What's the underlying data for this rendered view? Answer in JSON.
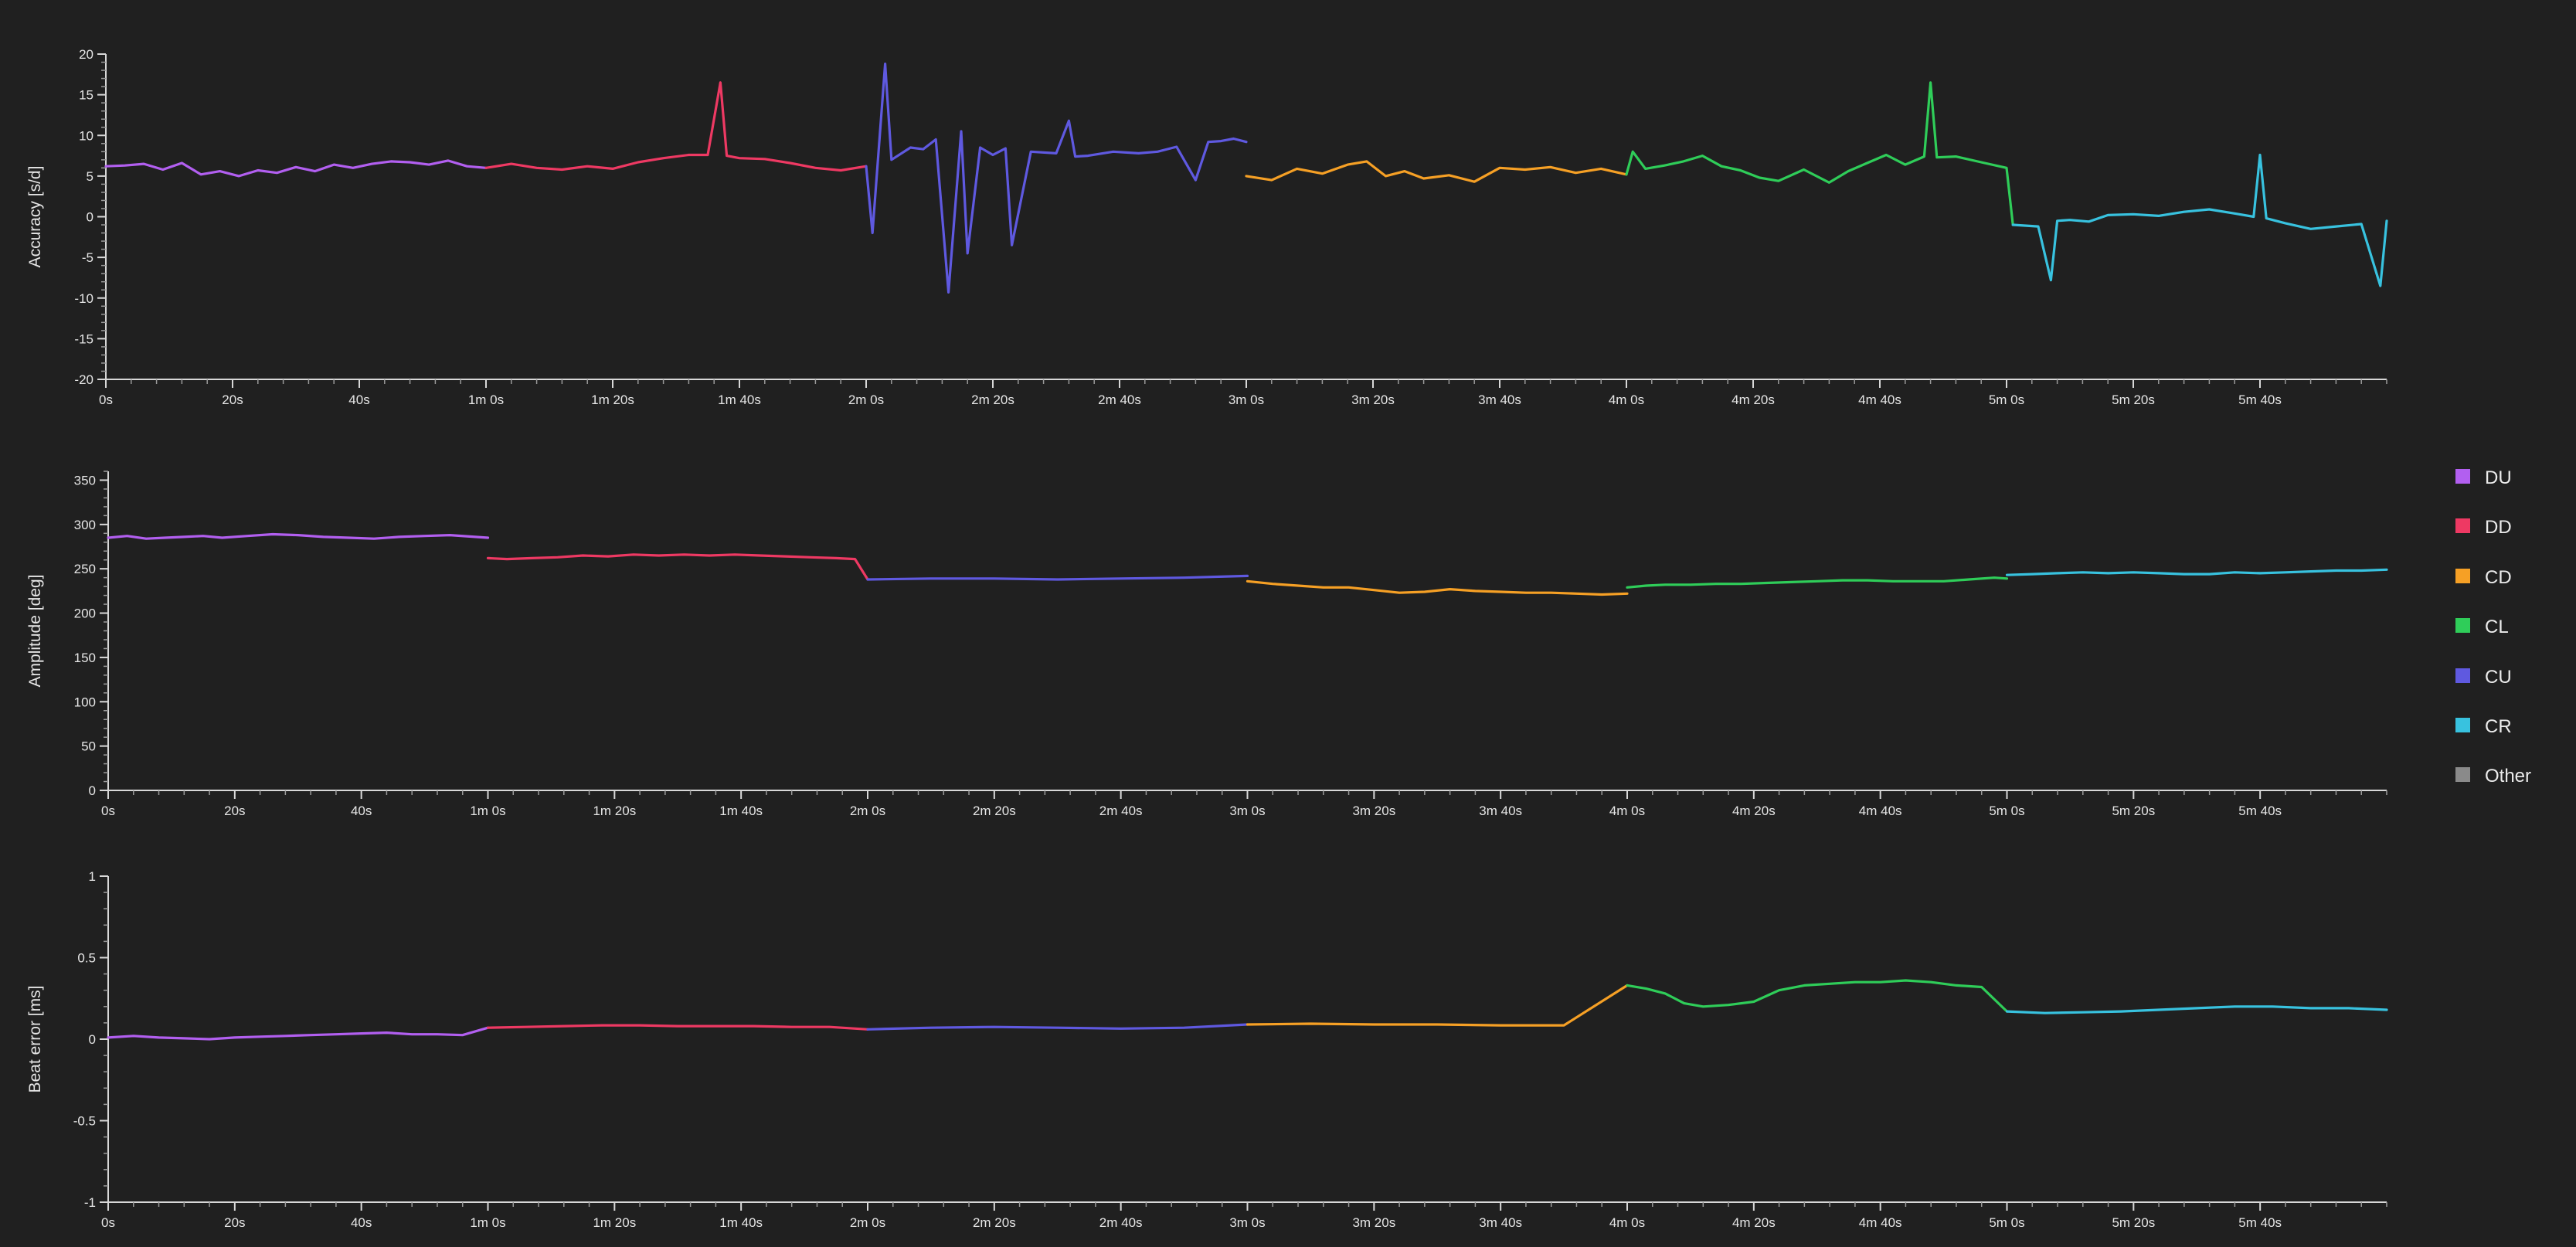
{
  "chart_data": [
    {
      "type": "line",
      "ylabel": "Accuracy [s/d]",
      "ylim": [
        -20,
        20
      ],
      "yticks": [
        -20,
        -15,
        -10,
        -5,
        0,
        5,
        10,
        15,
        20
      ],
      "xlim": [
        0,
        360
      ],
      "xticks": [
        0,
        20,
        40,
        60,
        80,
        100,
        120,
        140,
        160,
        180,
        200,
        220,
        240,
        260,
        280,
        300,
        320,
        340
      ],
      "xtick_labels": [
        "0s",
        "20s",
        "40s",
        "1m 0s",
        "1m 20s",
        "1m 40s",
        "2m 0s",
        "2m 20s",
        "2m 40s",
        "3m 0s",
        "3m 20s",
        "3m 40s",
        "4m 0s",
        "4m 20s",
        "4m 40s",
        "5m 0s",
        "5m 20s",
        "5m 40s"
      ],
      "series": [
        {
          "name": "DU",
          "x": [
            0,
            3,
            6,
            9,
            12,
            15,
            18,
            21,
            24,
            27,
            30,
            33,
            36,
            39,
            42,
            45,
            48,
            51,
            54,
            57,
            60
          ],
          "y": [
            6.2,
            6.3,
            6.5,
            5.8,
            6.6,
            5.2,
            5.6,
            5.0,
            5.7,
            5.4,
            6.1,
            5.6,
            6.4,
            6.0,
            6.5,
            6.8,
            6.7,
            6.4,
            6.9,
            6.2,
            6.0
          ]
        },
        {
          "name": "DD",
          "x": [
            60,
            64,
            68,
            72,
            76,
            80,
            84,
            88,
            92,
            95,
            97,
            98,
            100,
            104,
            108,
            112,
            116,
            120
          ],
          "y": [
            6.0,
            6.5,
            6.0,
            5.8,
            6.2,
            5.9,
            6.7,
            7.2,
            7.6,
            7.6,
            16.5,
            7.5,
            7.2,
            7.1,
            6.6,
            6.0,
            5.7,
            6.2
          ]
        },
        {
          "name": "CU",
          "x": [
            120,
            121,
            123,
            124,
            127,
            129,
            131,
            133,
            135,
            136,
            138,
            140,
            142,
            143,
            146,
            150,
            152,
            153,
            155,
            159,
            163,
            166,
            169,
            172,
            174,
            176,
            178,
            180
          ],
          "y": [
            6.2,
            -2.0,
            18.8,
            7.0,
            8.5,
            8.3,
            9.5,
            -9.3,
            10.5,
            -4.5,
            8.5,
            7.6,
            8.4,
            -3.5,
            8.0,
            7.8,
            11.8,
            7.4,
            7.5,
            8.0,
            7.8,
            8.0,
            8.6,
            4.5,
            9.2,
            9.3,
            9.6,
            9.2
          ]
        },
        {
          "name": "CD",
          "x": [
            180,
            184,
            188,
            192,
            196,
            199,
            202,
            205,
            208,
            212,
            216,
            220,
            224,
            228,
            232,
            236,
            240
          ],
          "y": [
            5.0,
            4.5,
            5.9,
            5.3,
            6.4,
            6.8,
            5.0,
            5.6,
            4.7,
            5.1,
            4.3,
            6.0,
            5.8,
            6.1,
            5.4,
            5.9,
            5.2
          ]
        },
        {
          "name": "CL",
          "x": [
            240,
            241,
            243,
            246,
            249,
            252,
            255,
            258,
            261,
            264,
            268,
            272,
            275,
            278,
            281,
            284,
            287,
            288,
            289,
            292,
            296,
            300,
            301
          ],
          "y": [
            5.2,
            8.0,
            5.9,
            6.3,
            6.8,
            7.5,
            6.2,
            5.7,
            4.8,
            4.4,
            5.8,
            4.2,
            5.6,
            6.6,
            7.6,
            6.4,
            7.4,
            16.5,
            7.3,
            7.4,
            6.7,
            6.0,
            -1.0
          ]
        },
        {
          "name": "CR",
          "x": [
            301,
            305,
            307,
            308,
            310,
            313,
            316,
            320,
            324,
            328,
            332,
            336,
            339,
            340,
            341,
            344,
            348,
            352,
            356,
            359,
            360
          ],
          "y": [
            -1.0,
            -1.2,
            -7.8,
            -0.5,
            -0.4,
            -0.6,
            0.2,
            0.3,
            0.1,
            0.6,
            0.9,
            0.4,
            0.0,
            7.6,
            -0.2,
            -0.8,
            -1.5,
            -1.2,
            -0.9,
            -8.5,
            -0.5
          ]
        }
      ]
    },
    {
      "type": "line",
      "ylabel": "Amplitude [deg]",
      "ylim": [
        0,
        360
      ],
      "yticks": [
        0,
        50,
        100,
        150,
        200,
        250,
        300,
        350
      ],
      "xlim": [
        0,
        360
      ],
      "xticks": [
        0,
        20,
        40,
        60,
        80,
        100,
        120,
        140,
        160,
        180,
        200,
        220,
        240,
        260,
        280,
        300,
        320,
        340
      ],
      "xtick_labels": [
        "0s",
        "20s",
        "40s",
        "1m 0s",
        "1m 20s",
        "1m 40s",
        "2m 0s",
        "2m 20s",
        "2m 40s",
        "3m 0s",
        "3m 20s",
        "3m 40s",
        "4m 0s",
        "4m 20s",
        "4m 40s",
        "5m 0s",
        "5m 20s",
        "5m 40s"
      ],
      "series": [
        {
          "name": "DU",
          "x": [
            0,
            3,
            6,
            9,
            12,
            15,
            18,
            22,
            26,
            30,
            34,
            38,
            42,
            46,
            50,
            54,
            58,
            60
          ],
          "y": [
            285,
            287,
            284,
            285,
            286,
            287,
            285,
            287,
            289,
            288,
            286,
            285,
            284,
            286,
            287,
            288,
            286,
            285
          ]
        },
        {
          "name": "DD",
          "x": [
            60,
            63,
            67,
            71,
            75,
            79,
            83,
            87,
            91,
            95,
            99,
            103,
            107,
            111,
            115,
            118,
            120
          ],
          "y": [
            262,
            261,
            262,
            263,
            265,
            264,
            266,
            265,
            266,
            265,
            266,
            265,
            264,
            263,
            262,
            261,
            238
          ]
        },
        {
          "name": "CU",
          "x": [
            120,
            130,
            140,
            150,
            160,
            170,
            180
          ],
          "y": [
            238,
            239,
            239,
            238,
            239,
            240,
            242
          ]
        },
        {
          "name": "CD",
          "x": [
            180,
            184,
            188,
            192,
            196,
            200,
            204,
            208,
            212,
            216,
            220,
            224,
            228,
            232,
            236,
            240
          ],
          "y": [
            236,
            233,
            231,
            229,
            229,
            226,
            223,
            224,
            227,
            225,
            224,
            223,
            223,
            222,
            221,
            222
          ]
        },
        {
          "name": "CL",
          "x": [
            240,
            243,
            246,
            250,
            254,
            258,
            262,
            266,
            270,
            274,
            278,
            282,
            286,
            290,
            294,
            298,
            300
          ],
          "y": [
            229,
            231,
            232,
            232,
            233,
            233,
            234,
            235,
            236,
            237,
            237,
            236,
            236,
            236,
            238,
            240,
            239
          ]
        },
        {
          "name": "CR",
          "x": [
            300,
            304,
            308,
            312,
            316,
            320,
            324,
            328,
            332,
            336,
            340,
            344,
            348,
            352,
            356,
            360
          ],
          "y": [
            243,
            244,
            245,
            246,
            245,
            246,
            245,
            244,
            244,
            246,
            245,
            246,
            247,
            248,
            248,
            249
          ]
        }
      ]
    },
    {
      "type": "line",
      "ylabel": "Beat error [ms]",
      "ylim": [
        -1,
        1
      ],
      "yticks": [
        -1,
        -0.5,
        0,
        0.5,
        1
      ],
      "ytick_labels": [
        "-1",
        "-0.5",
        "0",
        "0.5",
        "1"
      ],
      "xlim": [
        0,
        360
      ],
      "xticks": [
        0,
        20,
        40,
        60,
        80,
        100,
        120,
        140,
        160,
        180,
        200,
        220,
        240,
        260,
        280,
        300,
        320,
        340
      ],
      "xtick_labels": [
        "0s",
        "20s",
        "40s",
        "1m 0s",
        "1m 20s",
        "1m 40s",
        "2m 0s",
        "2m 20s",
        "2m 40s",
        "3m 0s",
        "3m 20s",
        "3m 40s",
        "4m 0s",
        "4m 20s",
        "4m 40s",
        "5m 0s",
        "5m 20s",
        "5m 40s"
      ],
      "series": [
        {
          "name": "DU",
          "x": [
            0,
            4,
            8,
            12,
            16,
            20,
            24,
            28,
            32,
            36,
            40,
            44,
            48,
            52,
            56,
            60
          ],
          "y": [
            0.01,
            0.02,
            0.01,
            0.005,
            0.0,
            0.01,
            0.015,
            0.02,
            0.025,
            0.03,
            0.035,
            0.04,
            0.03,
            0.03,
            0.025,
            0.07
          ]
        },
        {
          "name": "DD",
          "x": [
            60,
            66,
            72,
            78,
            84,
            90,
            96,
            102,
            108,
            114,
            120
          ],
          "y": [
            0.07,
            0.075,
            0.08,
            0.085,
            0.085,
            0.08,
            0.08,
            0.08,
            0.075,
            0.075,
            0.06
          ]
        },
        {
          "name": "CU",
          "x": [
            120,
            130,
            140,
            150,
            160,
            170,
            180
          ],
          "y": [
            0.06,
            0.07,
            0.075,
            0.07,
            0.065,
            0.07,
            0.09
          ]
        },
        {
          "name": "CD",
          "x": [
            180,
            190,
            200,
            210,
            220,
            230,
            240
          ],
          "y": [
            0.09,
            0.095,
            0.09,
            0.09,
            0.085,
            0.085,
            0.33
          ]
        },
        {
          "name": "CL",
          "x": [
            240,
            243,
            246,
            249,
            252,
            256,
            260,
            264,
            268,
            272,
            276,
            280,
            284,
            288,
            292,
            296,
            300
          ],
          "y": [
            0.33,
            0.31,
            0.28,
            0.22,
            0.2,
            0.21,
            0.23,
            0.3,
            0.33,
            0.34,
            0.35,
            0.35,
            0.36,
            0.35,
            0.33,
            0.32,
            0.17
          ]
        },
        {
          "name": "CR",
          "x": [
            300,
            306,
            312,
            318,
            324,
            330,
            336,
            342,
            348,
            354,
            360
          ],
          "y": [
            0.17,
            0.16,
            0.165,
            0.17,
            0.18,
            0.19,
            0.2,
            0.2,
            0.19,
            0.19,
            0.18
          ]
        }
      ]
    }
  ],
  "legend": {
    "items": [
      {
        "name": "DU",
        "color": "#b25ff0"
      },
      {
        "name": "DD",
        "color": "#ee3963"
      },
      {
        "name": "CD",
        "color": "#f6a025"
      },
      {
        "name": "CL",
        "color": "#2fcd59"
      },
      {
        "name": "CU",
        "color": "#5f59e0"
      },
      {
        "name": "CR",
        "color": "#38c2df"
      },
      {
        "name": "Other",
        "color": "#8a8a8a"
      }
    ]
  }
}
